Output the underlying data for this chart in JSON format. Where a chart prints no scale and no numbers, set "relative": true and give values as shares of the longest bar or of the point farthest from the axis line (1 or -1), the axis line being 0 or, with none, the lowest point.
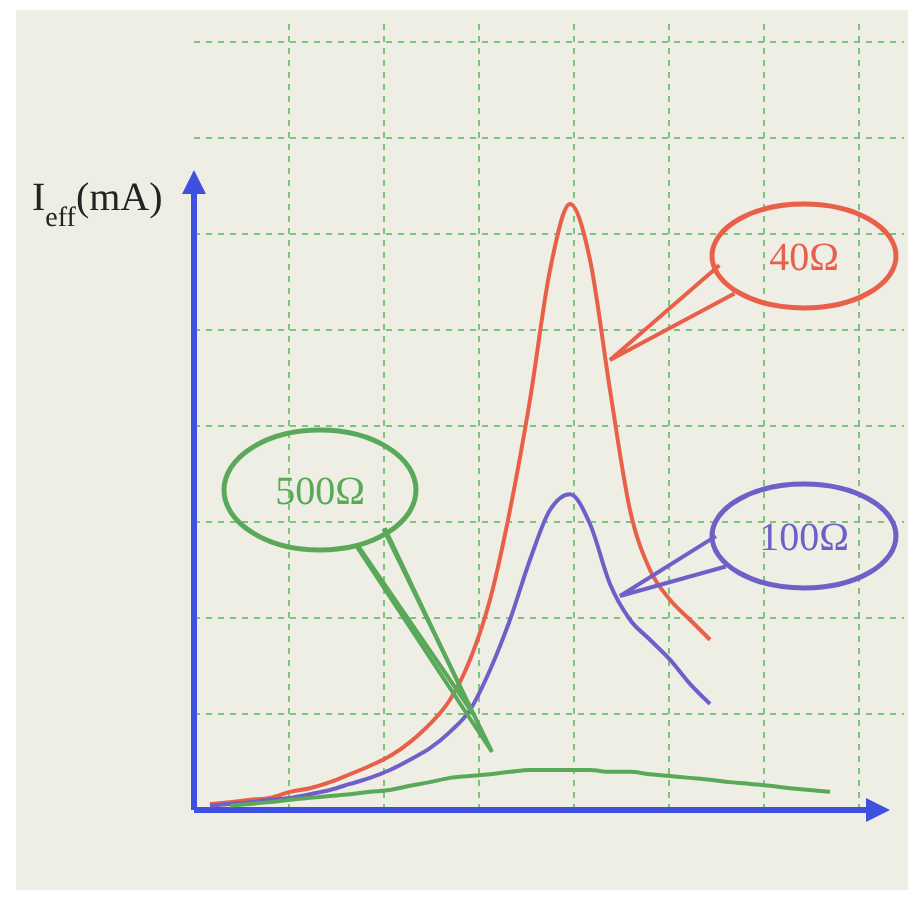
{
  "chart_data": {
    "type": "line",
    "ylabel": "I$_{eff}$(mA)",
    "relative": true,
    "grid": true,
    "marker": "none",
    "line_style": "solid",
    "categories": [
      null,
      null,
      null,
      null,
      null,
      null,
      null,
      null,
      null,
      null,
      null,
      null,
      null,
      null,
      null,
      null,
      null,
      null,
      null,
      null,
      null,
      null,
      null,
      null,
      null,
      null,
      null,
      null,
      null,
      null,
      null,
      null
    ],
    "series": [
      {
        "name": "40Ω",
        "color": "#e8604a",
        "values": [
          0.01,
          0.013,
          0.017,
          0.02,
          0.03,
          0.036,
          0.046,
          0.059,
          0.073,
          0.089,
          0.112,
          0.142,
          0.182,
          0.248,
          0.347,
          0.495,
          0.677,
          0.891,
          1,
          0.908,
          0.693,
          0.495,
          0.396,
          0.347,
          0.314,
          0.281,
          null,
          null,
          null,
          null,
          null,
          null
        ]
      },
      {
        "name": "100Ω",
        "color": "#6f5fc8",
        "values": [
          0.007,
          0.01,
          0.013,
          0.017,
          0.02,
          0.026,
          0.033,
          0.043,
          0.053,
          0.066,
          0.083,
          0.102,
          0.129,
          0.165,
          0.231,
          0.314,
          0.413,
          0.495,
          0.521,
          0.472,
          0.373,
          0.314,
          0.281,
          0.248,
          0.208,
          0.175,
          null,
          null,
          null,
          null,
          null,
          null
        ]
      },
      {
        "name": "500Ω",
        "color": "#5aa85a",
        "values": [
          null,
          0.007,
          0.01,
          0.013,
          0.017,
          0.02,
          0.023,
          0.026,
          0.03,
          0.033,
          0.04,
          0.046,
          0.053,
          0.056,
          0.059,
          0.063,
          0.066,
          0.066,
          0.066,
          0.066,
          0.063,
          0.063,
          0.059,
          0.056,
          0.053,
          0.05,
          0.046,
          0.043,
          0.04,
          0.036,
          0.033,
          0.03
        ]
      }
    ]
  }
}
